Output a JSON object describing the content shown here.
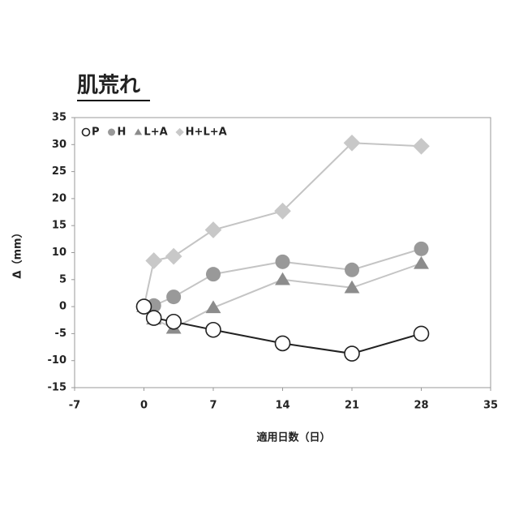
{
  "chart_data": {
    "type": "line",
    "title": "肌荒れ",
    "xlabel": "適用日数（日）",
    "ylabel": "Δ（mm）",
    "x": [
      0,
      1,
      3,
      7,
      14,
      21,
      28
    ],
    "series": [
      {
        "name": "P",
        "color": "#222222",
        "marker": "open-circle",
        "values": [
          0,
          -2.1,
          -2.8,
          -4.3,
          -6.8,
          -8.7,
          -5
        ]
      },
      {
        "name": "H",
        "color": "#999999",
        "marker": "circle",
        "values": [
          0,
          0.2,
          1.8,
          6,
          8.3,
          6.8,
          10.7
        ]
      },
      {
        "name": "L+A",
        "color": "#8c8c8c",
        "marker": "triangle",
        "values": [
          0,
          -2.3,
          -4,
          -0.2,
          5,
          3.5,
          8
        ]
      },
      {
        "name": "H+L+A",
        "color": "#c8c8c8",
        "marker": "diamond",
        "values": [
          0,
          8.5,
          9.3,
          14.2,
          17.7,
          30.3,
          29.7
        ]
      }
    ],
    "xlim": [
      -7,
      35
    ],
    "xticks": [
      -7,
      0,
      7,
      14,
      21,
      28,
      35
    ],
    "ylim": [
      -15,
      35
    ],
    "yticks": [
      -15,
      -10,
      -5,
      0,
      5,
      10,
      15,
      20,
      25,
      30,
      35
    ],
    "grid": false,
    "legend": "top-left"
  }
}
